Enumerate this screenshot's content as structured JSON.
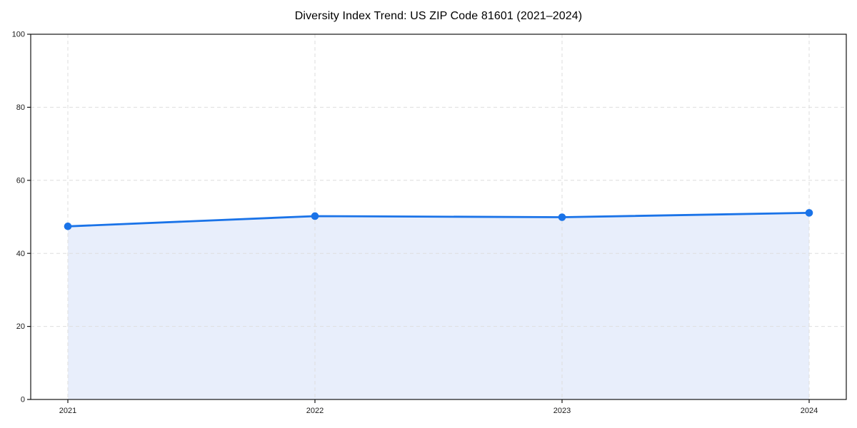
{
  "page": {
    "background": "#ffffff"
  },
  "chart_data": {
    "type": "line",
    "title": "Diversity Index Trend: US ZIP Code 81601 (2021–2024)",
    "x": [
      2021,
      2022,
      2023,
      2024
    ],
    "xticklabels": [
      "2021",
      "2022",
      "2023",
      "2024"
    ],
    "yticks": [
      0,
      20,
      40,
      60,
      80,
      100
    ],
    "ylim": [
      0,
      100
    ],
    "series": [
      {
        "name": "Diversity Index",
        "values": [
          47.4,
          50.2,
          49.9,
          51.1
        ]
      }
    ],
    "area_fill": true,
    "grid": true,
    "grid_style": "dashed",
    "legend": "none",
    "xlabel": "",
    "ylabel": "",
    "colors": {
      "line": "#1a73e8",
      "marker": "#1a73e8",
      "area": "#e8eefb",
      "grid": "#dedede",
      "spine": "#141414",
      "text": "#1a1a1a",
      "title": "#000000"
    }
  }
}
